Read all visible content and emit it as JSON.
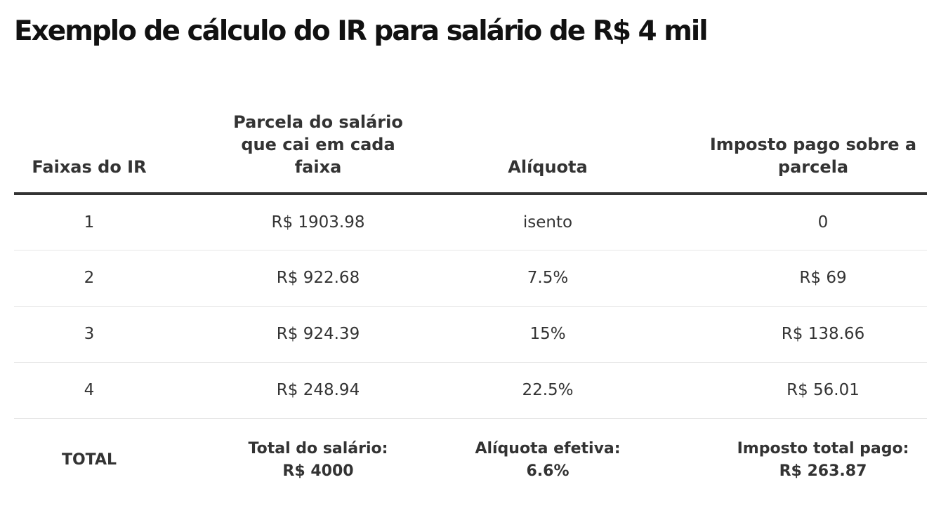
{
  "title": "Exemplo de cálculo do IR para salário de R$ 4 mil",
  "table": {
    "headers": [
      "Faixas do IR",
      "Parcela do salário que cai em cada faixa",
      "Alíquota",
      "Imposto pago sobre a parcela"
    ],
    "rows": [
      [
        "1",
        "R$ 1903.98",
        "isento",
        "0"
      ],
      [
        "2",
        "R$ 922.68",
        "7.5%",
        "R$ 69"
      ],
      [
        "3",
        "R$ 924.39",
        "15%",
        "R$ 138.66"
      ],
      [
        "4",
        "R$ 248.94",
        "22.5%",
        "R$ 56.01"
      ]
    ],
    "total": {
      "label": "TOTAL",
      "salary_label": "Total do salário:",
      "salary_value": "R$ 4000",
      "rate_label": "Alíquota efetiva:",
      "rate_value": "6.6%",
      "tax_label": "Imposto total pago:",
      "tax_value": "R$ 263.87"
    }
  }
}
